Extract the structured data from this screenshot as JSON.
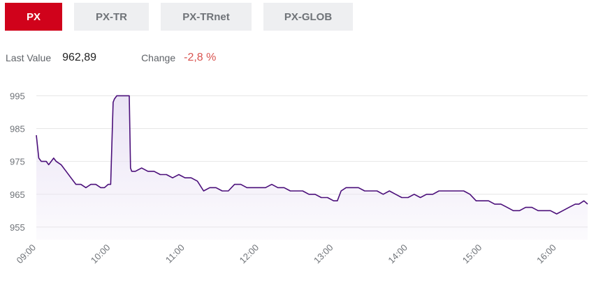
{
  "tabs": [
    {
      "label": "PX",
      "active": true
    },
    {
      "label": "PX-TR",
      "active": false
    },
    {
      "label": "PX-TRnet",
      "active": false
    },
    {
      "label": "PX-GLOB",
      "active": false
    }
  ],
  "stats": {
    "last_value_label": "Last Value",
    "last_value": "962,89",
    "change_label": "Change",
    "change": "-2,8 %"
  },
  "colors": {
    "accent": "#d0021b",
    "line": "#4b0f7a",
    "fill": "#e9e2f4",
    "negative": "#d9534f",
    "grid": "#e6e6e6"
  },
  "chart_data": {
    "type": "area",
    "title": "",
    "xlabel": "",
    "ylabel": "",
    "grid": true,
    "legend": "none",
    "ylim": [
      952,
      997
    ],
    "xlim": [
      "09:00",
      "16:25"
    ],
    "y_ticks": [
      "995",
      "985",
      "975",
      "965",
      "955"
    ],
    "x_ticks": [
      "09:00",
      "10:00",
      "11:00",
      "12:00",
      "13:00",
      "14:00",
      "15:00",
      "16:00"
    ],
    "series": [
      {
        "x": [
          "09:00",
          "09:02",
          "09:04",
          "09:08",
          "09:10",
          "09:14",
          "09:16",
          "09:20",
          "09:24",
          "09:28",
          "09:32",
          "09:36",
          "09:40",
          "09:44",
          "09:48",
          "09:52",
          "09:55",
          "09:58",
          "10:00",
          "10:02",
          "10:03",
          "10:05",
          "10:10",
          "10:15",
          "10:16",
          "10:17",
          "10:20",
          "10:25",
          "10:30",
          "10:35",
          "10:40",
          "10:45",
          "10:50",
          "10:55",
          "11:00",
          "11:05",
          "11:10",
          "11:15",
          "11:20",
          "11:25",
          "11:30",
          "11:35",
          "11:40",
          "11:45",
          "11:50",
          "11:55",
          "12:00",
          "12:05",
          "12:10",
          "12:15",
          "12:20",
          "12:25",
          "12:30",
          "12:35",
          "12:40",
          "12:45",
          "12:50",
          "12:55",
          "13:00",
          "13:03",
          "13:06",
          "13:10",
          "13:15",
          "13:20",
          "13:25",
          "13:30",
          "13:35",
          "13:40",
          "13:45",
          "13:50",
          "13:55",
          "14:00",
          "14:05",
          "14:10",
          "14:15",
          "14:20",
          "14:25",
          "14:30",
          "14:35",
          "14:40",
          "14:45",
          "14:50",
          "14:55",
          "15:00",
          "15:05",
          "15:10",
          "15:15",
          "15:20",
          "15:25",
          "15:30",
          "15:35",
          "15:40",
          "15:45",
          "15:50",
          "15:55",
          "16:00",
          "16:05",
          "16:10",
          "16:15",
          "16:18",
          "16:22",
          "16:25"
        ],
        "values": [
          983,
          976,
          975,
          975,
          974,
          976,
          975,
          974,
          972,
          970,
          968,
          968,
          967,
          968,
          968,
          967,
          967,
          968,
          968,
          993,
          994,
          995,
          995,
          995,
          973,
          972,
          972,
          973,
          972,
          972,
          971,
          971,
          970,
          971,
          970,
          970,
          969,
          966,
          967,
          967,
          966,
          966,
          968,
          968,
          967,
          967,
          967,
          967,
          968,
          967,
          967,
          966,
          966,
          966,
          965,
          965,
          964,
          964,
          963,
          963,
          966,
          967,
          967,
          967,
          966,
          966,
          966,
          965,
          966,
          965,
          964,
          964,
          965,
          964,
          965,
          965,
          966,
          966,
          966,
          966,
          966,
          965,
          963,
          963,
          963,
          962,
          962,
          961,
          960,
          960,
          961,
          961,
          960,
          960,
          960,
          959,
          960,
          961,
          962,
          962,
          963,
          962
        ]
      }
    ]
  }
}
